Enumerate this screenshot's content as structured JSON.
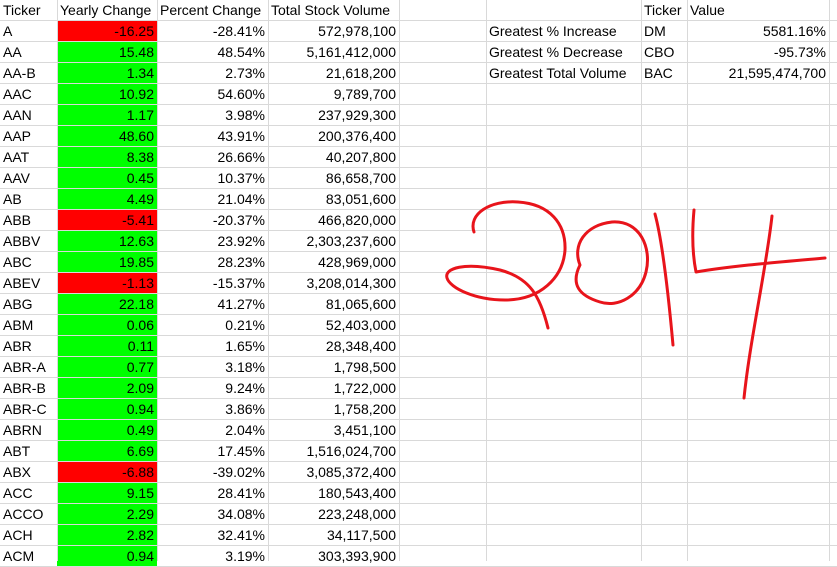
{
  "table": {
    "headers": [
      "Ticker",
      "Yearly Change",
      "Percent Change",
      "Total Stock Volume"
    ],
    "rows": [
      [
        "A",
        "-16.25",
        "-28.41%",
        "572,978,100",
        "neg"
      ],
      [
        "AA",
        "15.48",
        "48.54%",
        "5,161,412,000",
        "pos"
      ],
      [
        "AA-B",
        "1.34",
        "2.73%",
        "21,618,200",
        "pos"
      ],
      [
        "AAC",
        "10.92",
        "54.60%",
        "9,789,700",
        "pos"
      ],
      [
        "AAN",
        "1.17",
        "3.98%",
        "237,929,300",
        "pos"
      ],
      [
        "AAP",
        "48.60",
        "43.91%",
        "200,376,400",
        "pos"
      ],
      [
        "AAT",
        "8.38",
        "26.66%",
        "40,207,800",
        "pos"
      ],
      [
        "AAV",
        "0.45",
        "10.37%",
        "86,658,700",
        "pos"
      ],
      [
        "AB",
        "4.49",
        "21.04%",
        "83,051,600",
        "pos"
      ],
      [
        "ABB",
        "-5.41",
        "-20.37%",
        "466,820,000",
        "neg"
      ],
      [
        "ABBV",
        "12.63",
        "23.92%",
        "2,303,237,600",
        "pos"
      ],
      [
        "ABC",
        "19.85",
        "28.23%",
        "428,969,000",
        "pos"
      ],
      [
        "ABEV",
        "-1.13",
        "-15.37%",
        "3,208,014,300",
        "neg"
      ],
      [
        "ABG",
        "22.18",
        "41.27%",
        "81,065,600",
        "pos"
      ],
      [
        "ABM",
        "0.06",
        "0.21%",
        "52,403,000",
        "pos"
      ],
      [
        "ABR",
        "0.11",
        "1.65%",
        "28,348,400",
        "pos"
      ],
      [
        "ABR-A",
        "0.77",
        "3.18%",
        "1,798,500",
        "pos"
      ],
      [
        "ABR-B",
        "2.09",
        "9.24%",
        "1,722,000",
        "pos"
      ],
      [
        "ABR-C",
        "0.94",
        "3.86%",
        "1,758,200",
        "pos"
      ],
      [
        "ABRN",
        "0.49",
        "2.04%",
        "3,451,100",
        "pos"
      ],
      [
        "ABT",
        "6.69",
        "17.45%",
        "1,516,024,700",
        "pos"
      ],
      [
        "ABX",
        "-6.88",
        "-39.02%",
        "3,085,372,400",
        "neg"
      ],
      [
        "ACC",
        "9.15",
        "28.41%",
        "180,543,400",
        "pos"
      ],
      [
        "ACCO",
        "2.29",
        "34.08%",
        "223,248,000",
        "pos"
      ],
      [
        "ACH",
        "2.82",
        "32.41%",
        "34,117,500",
        "pos"
      ],
      [
        "ACM",
        "0.94",
        "3.19%",
        "303,393,900",
        "pos"
      ]
    ]
  },
  "summary": {
    "headers": [
      "Ticker",
      "Value"
    ],
    "rows": [
      [
        "Greatest % Increase",
        "DM",
        "5581.16%"
      ],
      [
        "Greatest % Decrease",
        "CBO",
        "-95.73%"
      ],
      [
        "Greatest Total Volume",
        "BAC",
        "21,595,474,700"
      ]
    ]
  },
  "annotation": {
    "text": "2014",
    "color": "#e8141b"
  },
  "colors": {
    "positive": "#00ff00",
    "negative": "#ff0000",
    "gridline": "#d9d9d9"
  }
}
